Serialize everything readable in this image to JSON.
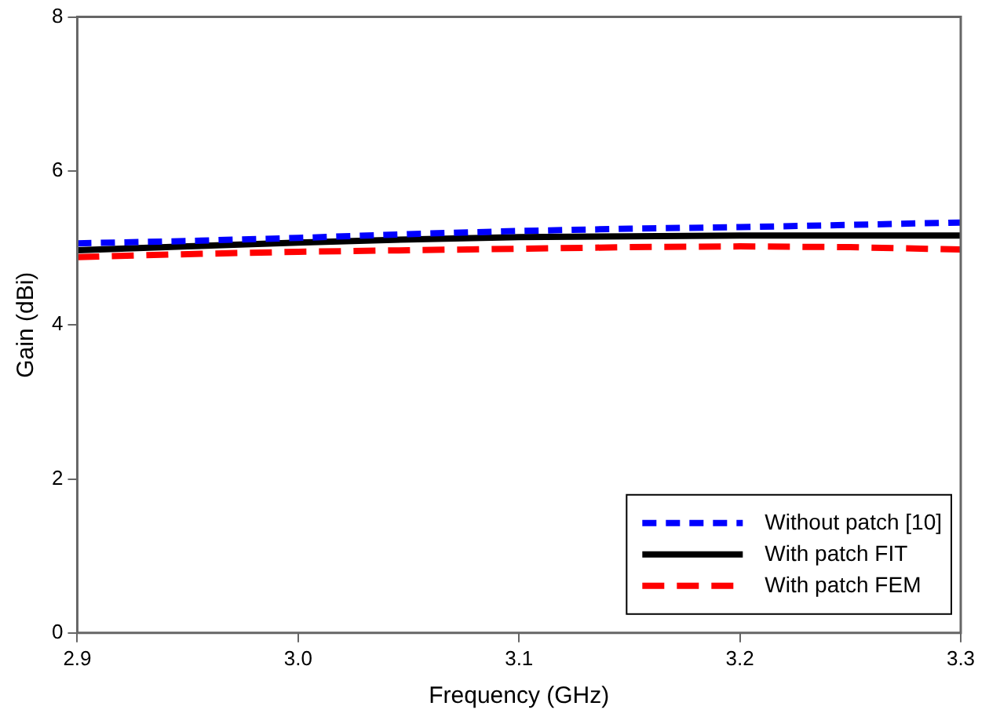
{
  "chart_data": {
    "type": "line",
    "xlabel": "Frequency (GHz)",
    "ylabel": "Gain (dBi)",
    "x": [
      2.9,
      2.95,
      3.0,
      3.05,
      3.1,
      3.15,
      3.2,
      3.25,
      3.3
    ],
    "xlim": [
      2.9,
      3.3
    ],
    "xticks": [
      {
        "value": 2.9,
        "label": "2.9"
      },
      {
        "value": 3.0,
        "label": "3.0"
      },
      3.1,
      3.2,
      3.3
    ],
    "ylim": [
      0,
      8
    ],
    "yticks": [
      0,
      2,
      4,
      6,
      8
    ],
    "grid": false,
    "legend": "bottom right",
    "marker": "none",
    "series": [
      {
        "name": "Without patch [10]",
        "color": "#0000ff",
        "line_style": "dotted",
        "values": [
          5.06,
          5.09,
          5.13,
          5.18,
          5.22,
          5.25,
          5.27,
          5.3,
          5.33
        ]
      },
      {
        "name": "With patch FIT",
        "color": "#000000",
        "line_style": "solid",
        "values": [
          4.97,
          5.02,
          5.07,
          5.11,
          5.14,
          5.15,
          5.16,
          5.16,
          5.16
        ]
      },
      {
        "name": "With patch FEM",
        "color": "#ff0000",
        "line_style": "dashed",
        "values": [
          4.88,
          4.92,
          4.95,
          4.97,
          4.99,
          5.01,
          5.02,
          5.01,
          4.98
        ]
      }
    ]
  }
}
